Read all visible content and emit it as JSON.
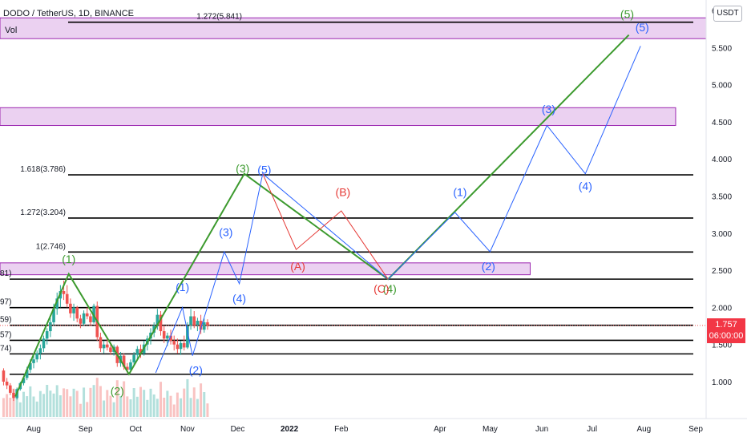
{
  "header": {
    "symbol_title": "DODO / TetherUS, 1D, BINANCE",
    "volume_label": "Vol",
    "currency": "USDT"
  },
  "price_badge": {
    "price": "1.757",
    "countdown": "06:00:00"
  },
  "colors": {
    "green_wave": "#3c9a2e",
    "blue_wave": "#2962ff",
    "red_wave": "#e53935",
    "zone_fill": "#e8c9ee",
    "zone_border": "#9c27b0",
    "candle_up": "#26a69a",
    "candle_down": "#ef5350",
    "level_line": "#000000"
  },
  "chart_data": {
    "type": "candlestick",
    "title": "DODO / TetherUS, 1D, BINANCE",
    "y_axis": {
      "side": "right",
      "ticks": [
        "6",
        "5.500",
        "5.000",
        "4.500",
        "4.000",
        "3.500",
        "3.000",
        "2.500",
        "2.000",
        "1.500",
        "1.000"
      ],
      "tick_values": [
        6.0,
        5.5,
        5.0,
        4.5,
        4.0,
        3.5,
        3.0,
        2.5,
        2.0,
        1.5,
        1.0
      ],
      "range": [
        0.4,
        6.1
      ]
    },
    "x_axis": {
      "ticks": [
        "Aug",
        "Sep",
        "Oct",
        "Nov",
        "Dec",
        "2022",
        "Feb",
        "Apr",
        "May",
        "Jun",
        "Jul",
        "Aug",
        "Sep"
      ],
      "tick_dates": [
        "2021-08-01",
        "2021-09-01",
        "2021-10-01",
        "2021-11-01",
        "2021-12-01",
        "2022-01-01",
        "2022-02-01",
        "2022-04-01",
        "2022-05-01",
        "2022-06-01",
        "2022-07-01",
        "2022-08-01",
        "2022-09-01"
      ]
    },
    "fib_levels": [
      {
        "label": "1.272(5.841)",
        "price": 5.841
      },
      {
        "label": "1.618(3.786)",
        "price": 3.786
      },
      {
        "label": "1.272(3.204)",
        "price": 3.204
      },
      {
        "label": "1(2.746)",
        "price": 2.746
      },
      {
        "label": "81)",
        "price": 2.381
      },
      {
        "label": "97)",
        "price": 1.997
      },
      {
        "label": "59)",
        "price": 1.759
      },
      {
        "label": "57)",
        "price": 1.557
      },
      {
        "label": "74)",
        "price": 1.374
      },
      {
        "label": "",
        "price": 1.1
      }
    ],
    "zones": [
      {
        "name": "top-zone",
        "start": "2021-07-01",
        "end": "2022-09-10",
        "low": 5.62,
        "high": 5.9
      },
      {
        "name": "upper-zone",
        "start": "2021-07-01",
        "end": "2022-08-20",
        "low": 4.45,
        "high": 4.69
      },
      {
        "name": "lower-zone",
        "start": "2021-07-01",
        "end": "2022-05-25",
        "low": 2.44,
        "high": 2.6
      }
    ],
    "current_price": 1.757,
    "countdown": "06:00:00",
    "candles": [
      [
        "2021-07-14",
        1.15,
        1.18,
        0.95,
        1.0
      ],
      [
        "2021-07-16",
        1.0,
        1.05,
        0.9,
        0.95
      ],
      [
        "2021-07-18",
        0.95,
        0.98,
        0.82,
        0.85
      ],
      [
        "2021-07-20",
        0.85,
        0.9,
        0.74,
        0.78
      ],
      [
        "2021-07-22",
        0.78,
        0.92,
        0.76,
        0.9
      ],
      [
        "2021-07-24",
        0.9,
        1.0,
        0.88,
        0.98
      ],
      [
        "2021-07-26",
        0.98,
        1.08,
        0.95,
        1.05
      ],
      [
        "2021-07-28",
        1.05,
        1.2,
        1.02,
        1.16
      ],
      [
        "2021-07-30",
        1.16,
        1.3,
        1.12,
        1.25
      ],
      [
        "2021-08-01",
        1.25,
        1.36,
        1.18,
        1.3
      ],
      [
        "2021-08-03",
        1.3,
        1.42,
        1.26,
        1.38
      ],
      [
        "2021-08-05",
        1.38,
        1.5,
        1.3,
        1.45
      ],
      [
        "2021-08-07",
        1.45,
        1.62,
        1.4,
        1.58
      ],
      [
        "2021-08-09",
        1.58,
        1.72,
        1.5,
        1.68
      ],
      [
        "2021-08-11",
        1.68,
        1.86,
        1.6,
        1.8
      ],
      [
        "2021-08-13",
        1.8,
        2.05,
        1.75,
        1.98
      ],
      [
        "2021-08-15",
        1.98,
        2.2,
        1.9,
        2.12
      ],
      [
        "2021-08-17",
        2.12,
        2.3,
        2.0,
        2.22
      ],
      [
        "2021-08-19",
        2.22,
        2.36,
        2.1,
        2.18
      ],
      [
        "2021-08-21",
        2.18,
        2.3,
        2.0,
        2.05
      ],
      [
        "2021-08-23",
        2.05,
        2.12,
        1.86,
        1.92
      ],
      [
        "2021-08-25",
        1.92,
        2.05,
        1.82,
        2.0
      ],
      [
        "2021-08-27",
        2.0,
        2.02,
        1.8,
        1.85
      ],
      [
        "2021-08-29",
        1.85,
        1.9,
        1.72,
        1.78
      ],
      [
        "2021-08-31",
        1.78,
        1.96,
        1.75,
        1.92
      ],
      [
        "2021-09-02",
        1.92,
        2.0,
        1.84,
        1.88
      ],
      [
        "2021-09-04",
        1.88,
        1.92,
        1.75,
        1.8
      ],
      [
        "2021-09-06",
        1.8,
        2.05,
        1.78,
        2.02
      ],
      [
        "2021-09-08",
        2.02,
        2.08,
        1.55,
        1.6
      ],
      [
        "2021-09-10",
        1.6,
        1.66,
        1.4,
        1.45
      ],
      [
        "2021-09-12",
        1.45,
        1.55,
        1.38,
        1.5
      ],
      [
        "2021-09-14",
        1.5,
        1.58,
        1.42,
        1.46
      ],
      [
        "2021-09-16",
        1.46,
        1.52,
        1.36,
        1.4
      ],
      [
        "2021-09-18",
        1.4,
        1.5,
        1.35,
        1.47
      ],
      [
        "2021-09-20",
        1.47,
        1.49,
        1.2,
        1.25
      ],
      [
        "2021-09-22",
        1.25,
        1.4,
        1.2,
        1.35
      ],
      [
        "2021-09-24",
        1.35,
        1.38,
        1.16,
        1.2
      ],
      [
        "2021-09-26",
        1.2,
        1.25,
        1.12,
        1.16
      ],
      [
        "2021-09-28",
        1.16,
        1.3,
        1.13,
        1.26
      ],
      [
        "2021-09-30",
        1.26,
        1.4,
        1.22,
        1.36
      ],
      [
        "2021-10-02",
        1.36,
        1.48,
        1.3,
        1.44
      ],
      [
        "2021-10-04",
        1.44,
        1.5,
        1.32,
        1.38
      ],
      [
        "2021-10-06",
        1.38,
        1.55,
        1.35,
        1.5
      ],
      [
        "2021-10-08",
        1.5,
        1.62,
        1.42,
        1.58
      ],
      [
        "2021-10-10",
        1.58,
        1.72,
        1.5,
        1.66
      ],
      [
        "2021-10-12",
        1.66,
        1.8,
        1.6,
        1.76
      ],
      [
        "2021-10-14",
        1.76,
        1.98,
        1.7,
        1.9
      ],
      [
        "2021-10-16",
        1.9,
        1.95,
        1.62,
        1.68
      ],
      [
        "2021-10-18",
        1.68,
        1.75,
        1.52,
        1.58
      ],
      [
        "2021-10-20",
        1.58,
        1.66,
        1.48,
        1.62
      ],
      [
        "2021-10-22",
        1.62,
        1.7,
        1.5,
        1.55
      ],
      [
        "2021-10-24",
        1.55,
        1.62,
        1.42,
        1.5
      ],
      [
        "2021-10-26",
        1.5,
        1.58,
        1.38,
        1.44
      ],
      [
        "2021-10-28",
        1.44,
        1.55,
        1.36,
        1.52
      ],
      [
        "2021-10-30",
        1.52,
        1.62,
        1.42,
        1.46
      ],
      [
        "2021-11-01",
        1.46,
        1.8,
        1.44,
        1.75
      ],
      [
        "2021-11-03",
        1.75,
        1.98,
        1.7,
        1.88
      ],
      [
        "2021-11-05",
        1.88,
        1.95,
        1.72,
        1.76
      ],
      [
        "2021-11-07",
        1.76,
        1.86,
        1.68,
        1.82
      ],
      [
        "2021-11-09",
        1.82,
        1.9,
        1.64,
        1.7
      ],
      [
        "2021-11-11",
        1.7,
        1.85,
        1.66,
        1.8
      ],
      [
        "2021-11-13",
        1.8,
        1.84,
        1.7,
        1.757
      ]
    ],
    "waves": [
      {
        "name": "green-count",
        "color": "#3c9a2e",
        "points": [
          [
            "2021-07-21",
            0.8
          ],
          [
            "2021-08-22",
            2.45
          ],
          [
            "2021-09-27",
            1.1
          ],
          [
            "2021-12-05",
            3.8
          ],
          [
            "2022-03-01",
            2.38
          ],
          [
            "2022-07-23",
            5.67
          ]
        ],
        "labels": [
          {
            "text": "(1)",
            "date": "2021-08-22",
            "price": 2.6
          },
          {
            "text": "(2)",
            "date": "2021-09-20",
            "price": 0.82
          },
          {
            "text": "(3)",
            "date": "2021-12-04",
            "price": 3.82
          },
          {
            "text": "(4)",
            "date": "2022-03-02",
            "price": 2.2
          },
          {
            "text": "(5)",
            "date": "2022-07-22",
            "price": 5.9
          }
        ]
      },
      {
        "name": "blue-count",
        "color": "#2962ff",
        "points": [
          [
            "2021-10-13",
            1.12
          ],
          [
            "2021-10-29",
            2.0
          ],
          [
            "2021-11-04",
            1.35
          ],
          [
            "2021-11-23",
            2.75
          ],
          [
            "2021-12-02",
            2.32
          ],
          [
            "2021-12-16",
            3.8
          ],
          [
            "2022-03-01",
            2.38
          ],
          [
            "2022-04-10",
            3.28
          ],
          [
            "2022-05-01",
            2.75
          ],
          [
            "2022-06-04",
            4.45
          ],
          [
            "2022-06-27",
            3.8
          ],
          [
            "2022-07-30",
            5.52
          ]
        ],
        "labels": [
          {
            "text": "(1)",
            "date": "2021-10-29",
            "price": 2.22
          },
          {
            "text": "(2)",
            "date": "2021-11-06",
            "price": 1.1
          },
          {
            "text": "(3)",
            "date": "2021-11-24",
            "price": 2.96
          },
          {
            "text": "(4)",
            "date": "2021-12-02",
            "price": 2.07
          },
          {
            "text": "(5)",
            "date": "2021-12-17",
            "price": 3.8
          },
          {
            "text": "(1)",
            "date": "2022-04-13",
            "price": 3.5
          },
          {
            "text": "(2)",
            "date": "2022-04-30",
            "price": 2.5
          },
          {
            "text": "(3)",
            "date": "2022-06-05",
            "price": 4.62
          },
          {
            "text": "(4)",
            "date": "2022-06-27",
            "price": 3.58
          },
          {
            "text": "(5)",
            "date": "2022-07-31",
            "price": 5.72
          }
        ]
      },
      {
        "name": "red-correction",
        "color": "#e53935",
        "points": [
          [
            "2021-12-16",
            3.8
          ],
          [
            "2022-01-05",
            2.78
          ],
          [
            "2022-02-01",
            3.3
          ],
          [
            "2022-03-01",
            2.38
          ]
        ],
        "labels": [
          {
            "text": "(A)",
            "date": "2022-01-06",
            "price": 2.5
          },
          {
            "text": "(B)",
            "date": "2022-02-02",
            "price": 3.5
          },
          {
            "text": "(C)",
            "date": "2022-02-25",
            "price": 2.2
          }
        ]
      }
    ]
  }
}
